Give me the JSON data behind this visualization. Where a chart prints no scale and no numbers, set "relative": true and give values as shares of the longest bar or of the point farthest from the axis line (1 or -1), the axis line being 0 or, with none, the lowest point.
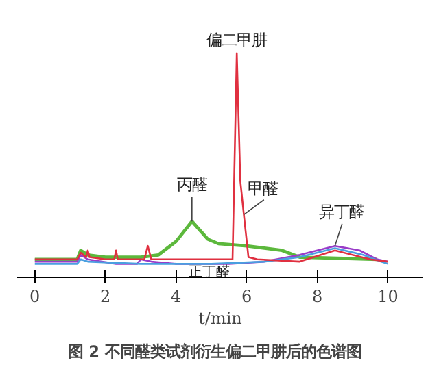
{
  "chart_data": {
    "type": "line",
    "relative": true,
    "title": "图 2   不同醛类试剂衍生偏二甲肼后的色谱图",
    "xlabel": "t/min",
    "xlim": [
      -0.5,
      11
    ],
    "xticks": [
      0,
      2,
      4,
      6,
      8,
      10
    ],
    "grid": false,
    "series": [
      {
        "color": "#5cb83c",
        "x": [
          0,
          1.2,
          1.3,
          1.5,
          2,
          3,
          3.5,
          4,
          4.45,
          4.9,
          5.2,
          6,
          7,
          7.5,
          9.7
        ],
        "values": [
          0.08,
          0.08,
          0.12,
          0.1,
          0.09,
          0.09,
          0.1,
          0.16,
          0.25,
          0.17,
          0.15,
          0.14,
          0.12,
          0.09,
          0.08
        ]
      },
      {
        "color": "#9a3cc8",
        "x": [
          0,
          1.2,
          1.3,
          1.5,
          2.3,
          2.9,
          3.0,
          3.3,
          4,
          5.5,
          6.5,
          7.5,
          8.5,
          9.2,
          9.7,
          10
        ],
        "values": [
          0.07,
          0.07,
          0.1,
          0.08,
          0.06,
          0.06,
          0.08,
          0.07,
          0.06,
          0.06,
          0.07,
          0.1,
          0.14,
          0.12,
          0.08,
          0.07
        ]
      },
      {
        "color": "#4a9fe0",
        "x": [
          0,
          1.2,
          1.3,
          1.5,
          3,
          5,
          6.5,
          7.5,
          8.5,
          9.3,
          9.8,
          10
        ],
        "values": [
          0.06,
          0.06,
          0.08,
          0.07,
          0.06,
          0.06,
          0.07,
          0.09,
          0.13,
          0.1,
          0.07,
          0.06
        ]
      },
      {
        "color": "#e03040",
        "x": [
          0,
          1.2,
          1.3,
          1.45,
          1.5,
          1.55,
          2,
          2.25,
          2.3,
          2.35,
          3.1,
          3.2,
          3.3,
          3.5,
          5.6,
          5.72,
          5.82,
          5.92,
          6.05,
          6.3,
          7.5,
          8.5,
          9.5,
          10
        ],
        "values": [
          0.08,
          0.08,
          0.11,
          0.09,
          0.12,
          0.09,
          0.08,
          0.08,
          0.12,
          0.08,
          0.08,
          0.14,
          0.08,
          0.08,
          0.08,
          1,
          0.43,
          0.28,
          0.09,
          0.08,
          0.07,
          0.12,
          0.08,
          0.07
        ]
      }
    ],
    "annotations": [
      {
        "text": "偏二甲肼",
        "x": 5.72,
        "y": 1
      },
      {
        "text": "甲醛",
        "x": 5.92,
        "y": 0.28
      },
      {
        "text": "丙醛",
        "x": 4.45,
        "y": 0.25
      },
      {
        "text": "异丁醛",
        "x": 8.5,
        "y": 0.14
      },
      {
        "text": "正丁醛",
        "x": 3.3,
        "y": 0.06
      }
    ]
  }
}
